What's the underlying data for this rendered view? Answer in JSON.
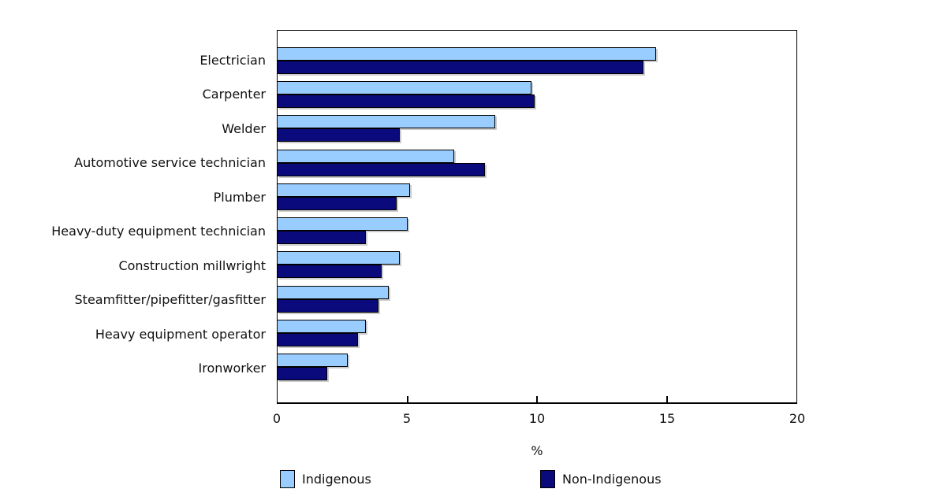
{
  "chart_data": {
    "type": "bar",
    "orientation": "horizontal",
    "title": "",
    "categories": [
      "Electrician",
      "Carpenter",
      "Welder",
      "Automotive service technician",
      "Plumber",
      "Heavy-duty equipment technician",
      "Construction millwright",
      "Steamfitter/pipefitter/gasfitter",
      "Heavy equipment operator",
      "Ironworker"
    ],
    "series": [
      {
        "name": "Indigenous",
        "color": "#99CCFF",
        "values": [
          14.6,
          9.8,
          8.4,
          6.8,
          5.1,
          5.0,
          4.7,
          4.3,
          3.4,
          2.7
        ]
      },
      {
        "name": "Non-Indigenous",
        "color": "#0A0A7D",
        "values": [
          14.1,
          9.9,
          4.7,
          8.0,
          4.6,
          3.4,
          4.0,
          3.9,
          3.1,
          1.9
        ]
      }
    ],
    "xlabel": "%",
    "xlim": [
      0,
      20
    ],
    "xticks": [
      0,
      5,
      10,
      15,
      20
    ],
    "grid": false,
    "legend_position": "bottom",
    "bar_border_color": "#000000",
    "axis_color": "#000000"
  }
}
